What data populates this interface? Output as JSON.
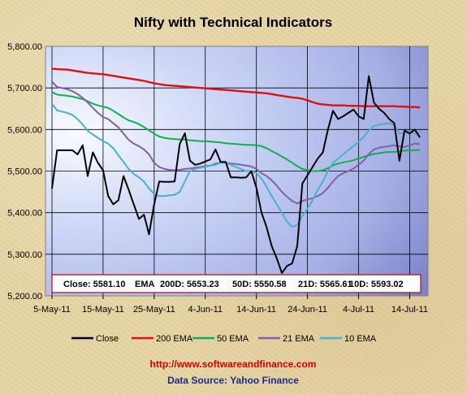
{
  "chart_data": {
    "type": "line",
    "title": "Nifty with Technical Indicators",
    "ylim": [
      5200,
      5800
    ],
    "y_ticks": [
      "5,200.00",
      "5,300.00",
      "5,400.00",
      "5,500.00",
      "5,600.00",
      "5,700.00",
      "5,800.00"
    ],
    "y_tick_values": [
      5200,
      5300,
      5400,
      5500,
      5600,
      5700,
      5800
    ],
    "x_ticks": [
      "5-May-11",
      "15-May-11",
      "25-May-11",
      "4-Jun-11",
      "14-Jun-11",
      "24-Jun-11",
      "4-Jul-11",
      "14-Jul-11"
    ],
    "x_tick_days": [
      0,
      10,
      20,
      30,
      40,
      50,
      60,
      70
    ],
    "x_days": [
      0,
      1,
      3,
      4,
      5,
      6,
      7,
      8,
      9,
      10,
      11,
      12,
      13,
      14,
      15,
      16,
      17,
      18,
      19,
      20,
      21,
      22,
      23,
      24,
      25,
      26,
      27,
      28,
      29,
      30,
      31,
      32,
      33,
      34,
      35,
      36,
      37,
      38,
      39,
      40,
      41,
      42,
      43,
      44,
      45,
      46,
      47,
      48,
      49,
      50,
      51,
      52,
      53,
      54,
      55,
      56,
      57,
      58,
      59,
      60,
      61,
      62,
      63,
      64,
      65,
      66,
      67,
      68,
      69,
      70,
      71,
      72
    ],
    "grid": true,
    "legend_position": "bottom",
    "series": [
      {
        "name": "Close",
        "color": "#000000",
        "values": [
          5458,
          5550,
          5550,
          5550,
          5540,
          5562,
          5488,
          5545,
          5520,
          5502,
          5440,
          5420,
          5430,
          5488,
          5455,
          5420,
          5385,
          5395,
          5348,
          5420,
          5475,
          5474,
          5474,
          5475,
          5565,
          5591,
          5525,
          5515,
          5518,
          5523,
          5528,
          5552,
          5522,
          5522,
          5485,
          5485,
          5484,
          5485,
          5500,
          5460,
          5400,
          5365,
          5320,
          5290,
          5255,
          5272,
          5278,
          5320,
          5470,
          5490,
          5510,
          5530,
          5545,
          5600,
          5645,
          5625,
          5632,
          5640,
          5648,
          5632,
          5625,
          5728,
          5665,
          5650,
          5640,
          5625,
          5615,
          5525,
          5598,
          5590,
          5600,
          5581
        ]
      },
      {
        "name": "200 EMA",
        "color": "#e01010",
        "values": [
          5746,
          5745,
          5744,
          5742,
          5740,
          5738,
          5736,
          5735,
          5734,
          5733,
          5731,
          5729,
          5727,
          5725,
          5723,
          5721,
          5719,
          5717,
          5714,
          5711,
          5709,
          5707,
          5706,
          5705,
          5704,
          5703,
          5702,
          5701,
          5700,
          5699,
          5698,
          5697,
          5696,
          5695,
          5694,
          5693,
          5692,
          5691,
          5690,
          5689,
          5688,
          5687,
          5685,
          5683,
          5681,
          5679,
          5677,
          5676,
          5674,
          5670,
          5666,
          5662,
          5660,
          5659,
          5658,
          5658,
          5658,
          5657,
          5657,
          5657,
          5656,
          5656,
          5656,
          5656,
          5656,
          5656,
          5656,
          5655,
          5655,
          5654,
          5654,
          5653
        ]
      },
      {
        "name": "50 EMA",
        "color": "#10b050",
        "values": [
          5690,
          5684,
          5681,
          5679,
          5676,
          5673,
          5668,
          5662,
          5658,
          5655,
          5652,
          5645,
          5637,
          5629,
          5622,
          5618,
          5613,
          5606,
          5598,
          5590,
          5583,
          5580,
          5578,
          5577,
          5576,
          5576,
          5574,
          5573,
          5572,
          5572,
          5571,
          5570,
          5569,
          5567,
          5566,
          5565,
          5564,
          5563,
          5563,
          5562,
          5560,
          5555,
          5548,
          5542,
          5535,
          5528,
          5520,
          5512,
          5505,
          5502,
          5500,
          5500,
          5502,
          5507,
          5514,
          5518,
          5521,
          5523,
          5526,
          5530,
          5534,
          5538,
          5541,
          5543,
          5545,
          5546,
          5546,
          5548,
          5549,
          5550,
          5550,
          5551
        ]
      },
      {
        "name": "21 EMA",
        "color": "#8060a8",
        "values": [
          5715,
          5702,
          5697,
          5692,
          5685,
          5676,
          5665,
          5652,
          5640,
          5630,
          5625,
          5615,
          5605,
          5590,
          5575,
          5566,
          5560,
          5552,
          5540,
          5520,
          5510,
          5505,
          5503,
          5502,
          5503,
          5505,
          5506,
          5508,
          5510,
          5512,
          5513,
          5518,
          5520,
          5520,
          5518,
          5517,
          5515,
          5513,
          5511,
          5505,
          5495,
          5488,
          5478,
          5465,
          5450,
          5438,
          5428,
          5422,
          5428,
          5432,
          5435,
          5440,
          5447,
          5460,
          5475,
          5488,
          5495,
          5500,
          5506,
          5515,
          5525,
          5541,
          5552,
          5556,
          5558,
          5560,
          5562,
          5560,
          5558,
          5562,
          5566,
          5565
        ]
      },
      {
        "name": "10 EMA",
        "color": "#4ab0d0",
        "values": [
          5662,
          5646,
          5640,
          5635,
          5625,
          5612,
          5597,
          5588,
          5580,
          5572,
          5566,
          5555,
          5538,
          5522,
          5505,
          5493,
          5485,
          5475,
          5458,
          5445,
          5440,
          5440,
          5442,
          5443,
          5450,
          5475,
          5500,
          5505,
          5508,
          5510,
          5513,
          5515,
          5520,
          5520,
          5515,
          5510,
          5505,
          5500,
          5500,
          5495,
          5482,
          5462,
          5440,
          5420,
          5400,
          5378,
          5366,
          5370,
          5392,
          5410,
          5430,
          5455,
          5475,
          5500,
          5520,
          5530,
          5540,
          5550,
          5560,
          5570,
          5582,
          5598,
          5608,
          5612,
          5614,
          5615,
          5610,
          5590,
          5592,
          5595,
          5590,
          5593
        ]
      }
    ]
  },
  "info": {
    "close": "Close: 5581.10",
    "ema_label": "EMA",
    "d200": "200D: 5653.23",
    "d50": "50D: 5550.58",
    "d21": "21D: 5565.61",
    "d10": "10D: 5593.02"
  },
  "footer": {
    "url": "http://www.softwareandfinance.com",
    "source": "Data Source: Yahoo Finance"
  }
}
